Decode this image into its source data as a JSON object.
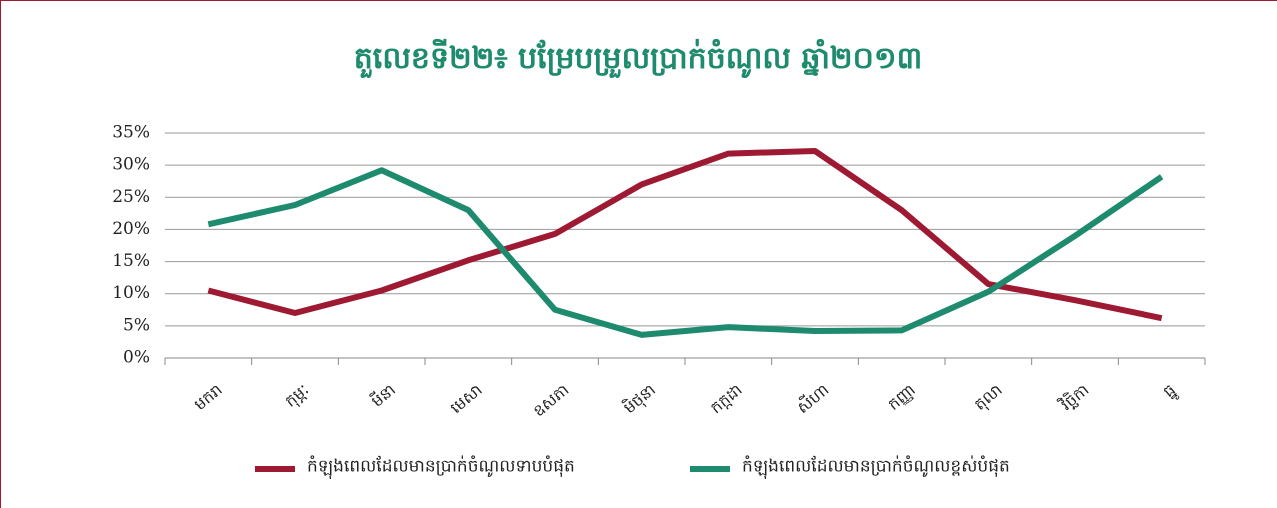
{
  "chart_data": {
    "type": "line",
    "title": "តួលេខទី២២៖ បម្រែបម្រួលប្រាក់ចំណូល ឆ្នាំ២០១៣",
    "categories": [
      "មករា",
      "កុម្ភៈ",
      "មីនា",
      "មេសា",
      "ឧសភា",
      "មិថុនា",
      "កក្កដា",
      "សីហា",
      "កញ្ញា",
      "តុលា",
      "វិច្ឆិកា",
      "ធ្នូ"
    ],
    "series": [
      {
        "name": "កំឡុងពេលដែលមានប្រាក់ចំណូលទាបបំផុត",
        "color": "#9e1a32",
        "values": [
          10.5,
          7,
          10.5,
          15.2,
          19.3,
          27,
          31.8,
          32.2,
          23,
          11.5,
          9,
          6.2
        ]
      },
      {
        "name": "កំឡុងពេលដែលមានប្រាក់ចំណូលខ្ពស់បំផុត",
        "color": "#1e8a6e",
        "values": [
          20.8,
          23.8,
          29.2,
          23,
          7.5,
          3.6,
          4.8,
          4.2,
          4.3,
          10.3,
          19,
          28.2
        ]
      }
    ],
    "ylim": [
      0,
      35
    ],
    "yticks": [
      {
        "value": 0,
        "label": "0%"
      },
      {
        "value": 5,
        "label": "5%"
      },
      {
        "value": 10,
        "label": "10%"
      },
      {
        "value": 15,
        "label": "15%"
      },
      {
        "value": 20,
        "label": "20%"
      },
      {
        "value": 25,
        "label": "25%"
      },
      {
        "value": 30,
        "label": "30%"
      },
      {
        "value": 35,
        "label": "35%"
      }
    ],
    "grid": true,
    "legend": "bottom"
  }
}
